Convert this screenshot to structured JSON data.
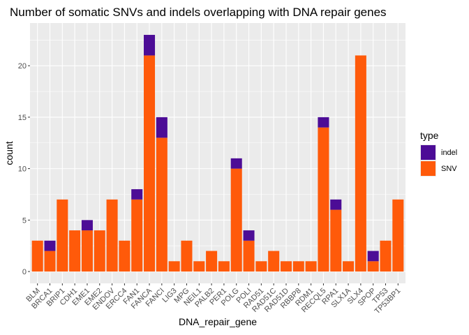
{
  "chart_data": {
    "type": "bar",
    "stacked": true,
    "title": "Number of somatic SNVs and indels overlapping with DNA repair genes",
    "xlabel": "DNA_repair_gene",
    "ylabel": "count",
    "ylim": [
      -1.15,
      24.15
    ],
    "yticks": [
      0,
      5,
      10,
      15,
      20
    ],
    "grid": true,
    "legend_position": "right",
    "legend_title": "type",
    "categories": [
      "BLM",
      "BRCA1",
      "BRIP1",
      "CDH1",
      "EME1",
      "EME2",
      "ENDOV",
      "ERCC4",
      "FAN1",
      "FANCA",
      "FANCI",
      "LIG3",
      "MPG",
      "NEIL1",
      "PALB2",
      "PER1",
      "POLG",
      "POLI",
      "RAD51",
      "RAD51C",
      "RAD51D",
      "RBBP8",
      "RDM1",
      "RECQL5",
      "RPA1",
      "SLX1A",
      "SLX4",
      "SPOP",
      "TP53",
      "TP53BP1"
    ],
    "series": [
      {
        "name": "SNV",
        "color": "#FF5A0A",
        "values": [
          3,
          2,
          7,
          4,
          4,
          4,
          7,
          3,
          7,
          21,
          13,
          1,
          3,
          1,
          2,
          1,
          10,
          3,
          1,
          2,
          1,
          1,
          1,
          14,
          6,
          1,
          21,
          1,
          3,
          7
        ]
      },
      {
        "name": "indel",
        "color": "#4C0C96",
        "values": [
          0,
          1,
          0,
          0,
          1,
          0,
          0,
          0,
          1,
          2,
          2,
          0,
          0,
          0,
          0,
          0,
          1,
          1,
          0,
          0,
          0,
          0,
          0,
          1,
          1,
          0,
          0,
          1,
          0,
          0
        ]
      }
    ],
    "legend_order": [
      "indel",
      "SNV"
    ],
    "panel_background": "#EBEBEB",
    "grid_color": "#FFFFFF"
  }
}
